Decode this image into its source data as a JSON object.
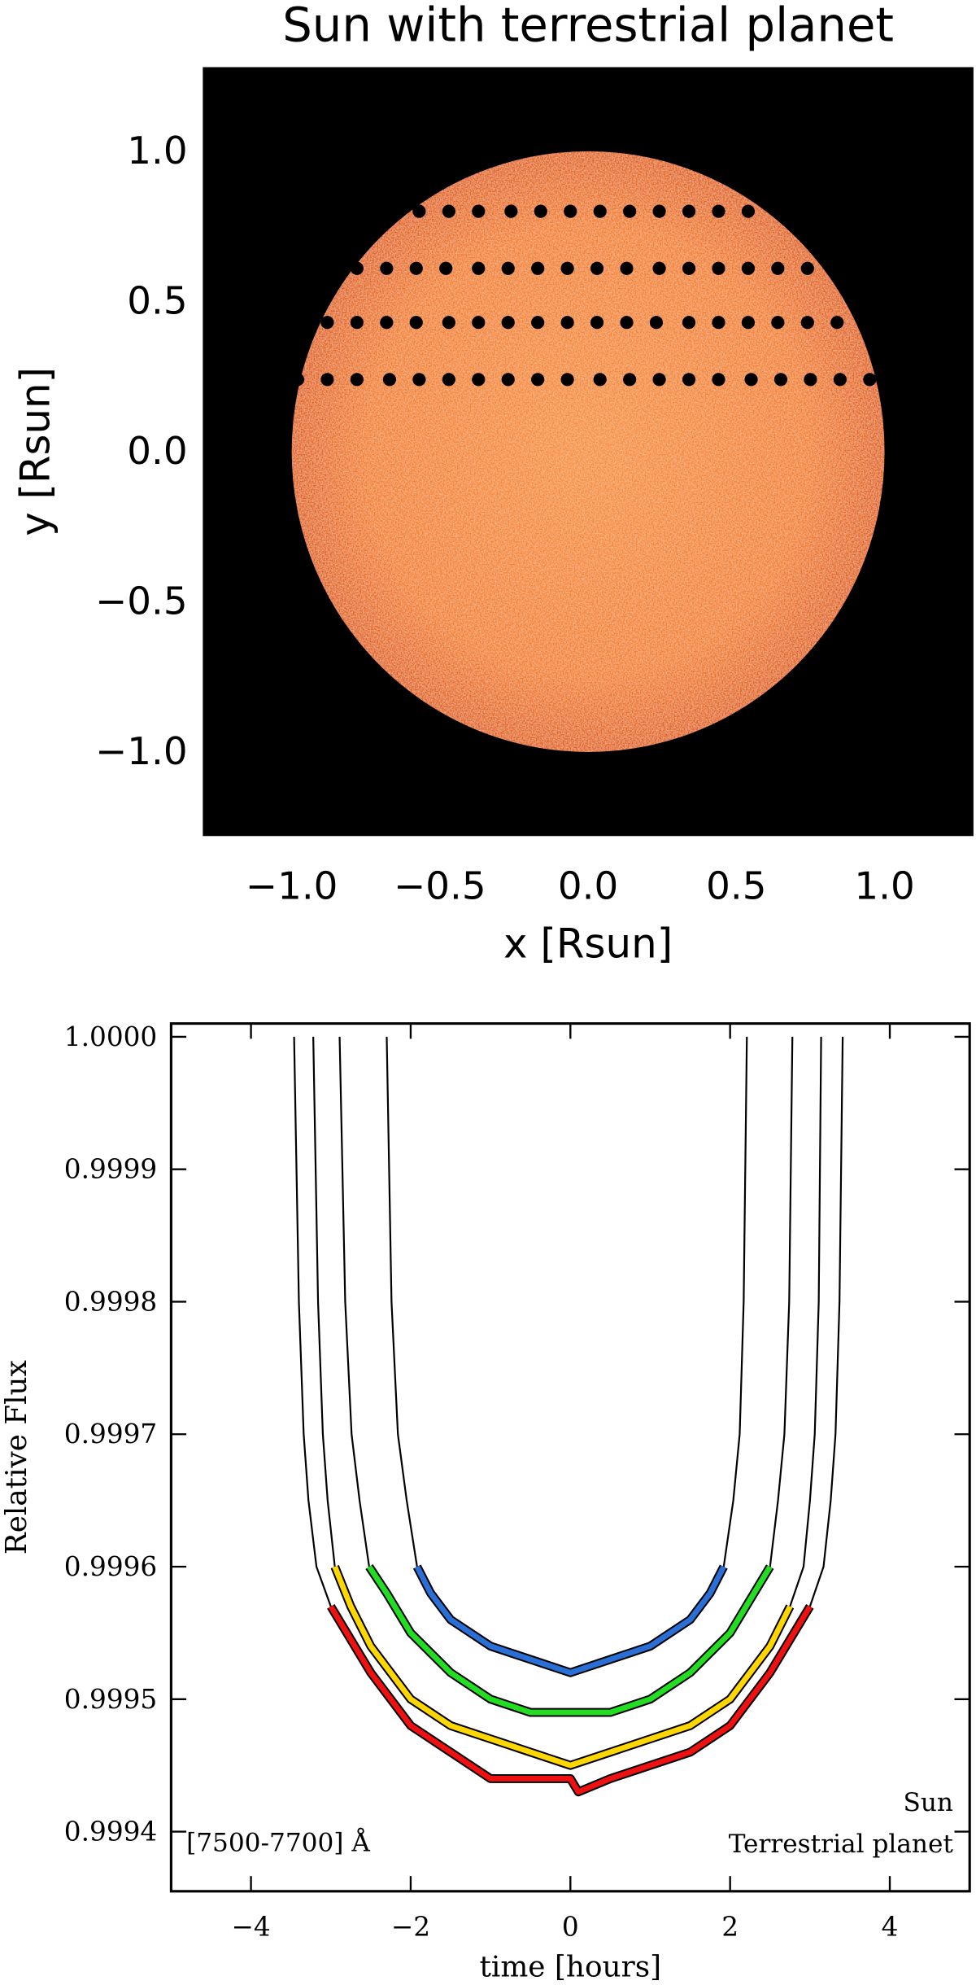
{
  "chart_data": [
    {
      "type": "scatter",
      "title": "Sun with terrestrial planet",
      "x_label": "x [Rsun]",
      "y_label": "y [Rsun]",
      "xlim": [
        -1.3,
        1.3
      ],
      "ylim": [
        -1.28,
        1.28
      ],
      "xticks": [
        {
          "value": -1,
          "label": "−1.0"
        },
        {
          "value": -0.5,
          "label": "−0.5"
        },
        {
          "value": 0,
          "label": "0.0"
        },
        0.5,
        {
          "value": 1,
          "label": "1.0"
        }
      ],
      "yticks": [
        {
          "value": -1,
          "label": "−1.0"
        },
        {
          "value": -0.5,
          "label": "−0.5"
        },
        {
          "value": 0,
          "label": "0.0"
        },
        0.5,
        {
          "value": 1,
          "label": "1.0"
        }
      ],
      "series": [
        {
          "color": "#000000",
          "x": [
            -0.57,
            -0.47,
            -0.37,
            -0.26,
            -0.16,
            -0.06,
            0.04,
            0.14,
            0.24,
            0.34,
            0.44,
            0.54
          ],
          "values": [
            0.8,
            0.8,
            0.8,
            0.8,
            0.8,
            0.8,
            0.8,
            0.8,
            0.8,
            0.8,
            0.8,
            0.8
          ]
        },
        {
          "color": "#000000",
          "x": [
            -0.78,
            -0.68,
            -0.58,
            -0.48,
            -0.37,
            -0.27,
            -0.17,
            -0.07,
            0.03,
            0.13,
            0.24,
            0.34,
            0.44,
            0.54,
            0.64,
            0.74
          ],
          "values": [
            0.61,
            0.61,
            0.61,
            0.61,
            0.61,
            0.61,
            0.61,
            0.61,
            0.61,
            0.61,
            0.61,
            0.61,
            0.61,
            0.61,
            0.61,
            0.61
          ]
        },
        {
          "color": "#000000",
          "x": [
            -0.88,
            -0.78,
            -0.68,
            -0.58,
            -0.47,
            -0.37,
            -0.27,
            -0.17,
            -0.07,
            0.03,
            0.13,
            0.23,
            0.34,
            0.44,
            0.54,
            0.64,
            0.74,
            0.84
          ],
          "values": [
            0.43,
            0.43,
            0.43,
            0.43,
            0.43,
            0.43,
            0.43,
            0.43,
            0.43,
            0.43,
            0.43,
            0.43,
            0.43,
            0.43,
            0.43,
            0.43,
            0.43,
            0.43
          ]
        },
        {
          "color": "#000000",
          "x": [
            -0.98,
            -0.88,
            -0.78,
            -0.67,
            -0.57,
            -0.47,
            -0.37,
            -0.27,
            -0.17,
            -0.07,
            0.04,
            0.14,
            0.24,
            0.34,
            0.44,
            0.55,
            0.65,
            0.75,
            0.85,
            0.95
          ],
          "values": [
            0.24,
            0.24,
            0.24,
            0.24,
            0.24,
            0.24,
            0.24,
            0.24,
            0.24,
            0.24,
            0.24,
            0.24,
            0.24,
            0.24,
            0.24,
            0.24,
            0.24,
            0.24,
            0.24,
            0.24
          ]
        }
      ]
    },
    {
      "type": "line",
      "x_label": "time [hours]",
      "y_label": "Relative Flux",
      "xlim": [
        -5,
        5
      ],
      "ylim": [
        0.999355,
        1.00001
      ],
      "xticks": [
        {
          "value": -4,
          "label": "−4"
        },
        {
          "value": -2,
          "label": "−2"
        },
        0,
        2,
        4
      ],
      "yticks": [
        {
          "value": 1,
          "label": "1.0000"
        },
        0.9999,
        0.9998,
        0.9997,
        0.9996,
        0.9995,
        0.9994
      ],
      "annotations": [
        "[7500-7700] Å",
        "Sun",
        "Terrestrial planet"
      ],
      "series": [
        {
          "color": "#2a6fd6",
          "x": [
            -2.3,
            -2.24,
            -2.16,
            -2.05,
            -1.92,
            -1.75,
            -1.5,
            -1.0,
            -0.5,
            0,
            0.5,
            1.0,
            1.5,
            1.75,
            1.92,
            2.04,
            2.12,
            2.17,
            2.21
          ],
          "values": [
            1.0,
            0.9998,
            0.9997,
            0.99965,
            0.9996,
            0.99958,
            0.99956,
            0.99954,
            0.99953,
            0.99952,
            0.99953,
            0.99954,
            0.99956,
            0.99958,
            0.9996,
            0.99965,
            0.9997,
            0.9998,
            1.0
          ]
        },
        {
          "color": "#22dd22",
          "x": [
            -2.89,
            -2.82,
            -2.74,
            -2.64,
            -2.52,
            -2.3,
            -2.0,
            -1.5,
            -1.0,
            -0.5,
            0,
            0.5,
            1.0,
            1.5,
            2.0,
            2.3,
            2.5,
            2.6,
            2.68,
            2.74,
            2.78
          ],
          "values": [
            1.0,
            0.9998,
            0.9997,
            0.99965,
            0.9996,
            0.99958,
            0.99955,
            0.99952,
            0.9995,
            0.99949,
            0.99949,
            0.99949,
            0.9995,
            0.99952,
            0.99955,
            0.99958,
            0.9996,
            0.99965,
            0.9997,
            0.9998,
            1.0
          ]
        },
        {
          "color": "#ffd700",
          "x": [
            -3.22,
            -3.16,
            -3.1,
            -3.04,
            -2.95,
            -2.75,
            -2.5,
            -2.0,
            -1.5,
            -1.0,
            -0.5,
            0,
            0.5,
            1.0,
            1.5,
            2.0,
            2.5,
            2.75,
            2.92,
            3.0,
            3.06,
            3.11,
            3.14
          ],
          "values": [
            1.0,
            0.9998,
            0.9997,
            0.99965,
            0.9996,
            0.99957,
            0.99954,
            0.9995,
            0.99948,
            0.99947,
            0.99946,
            0.99945,
            0.99946,
            0.99947,
            0.99948,
            0.9995,
            0.99954,
            0.99957,
            0.9996,
            0.99965,
            0.9997,
            0.9998,
            1.0
          ]
        },
        {
          "color": "#ee1111",
          "x": [
            -3.46,
            -3.4,
            -3.34,
            -3.28,
            -3.18,
            -3.0,
            -2.5,
            -2.0,
            -1.5,
            -1.0,
            -0.5,
            0,
            0.1,
            0.5,
            1.0,
            1.5,
            2.0,
            2.5,
            3.0,
            3.17,
            3.26,
            3.32,
            3.37,
            3.41
          ],
          "values": [
            1.0,
            0.9998,
            0.9997,
            0.99965,
            0.9996,
            0.99957,
            0.99952,
            0.99948,
            0.99946,
            0.99944,
            0.99944,
            0.99944,
            0.99943,
            0.99944,
            0.99945,
            0.99946,
            0.99948,
            0.99952,
            0.99957,
            0.9996,
            0.99965,
            0.9997,
            0.9998,
            1.0
          ]
        }
      ]
    }
  ]
}
